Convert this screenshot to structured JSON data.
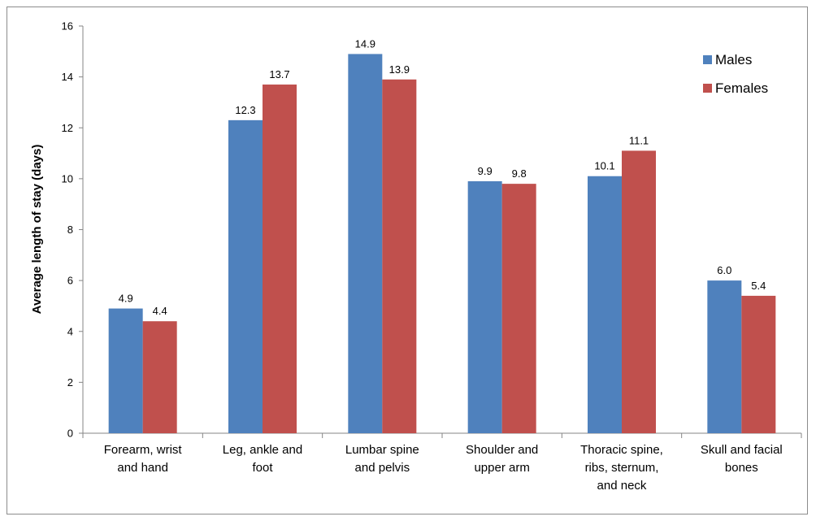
{
  "chart_data": {
    "type": "bar",
    "title": "",
    "xlabel": "",
    "ylabel": "Average length of stay (days)",
    "ylim": [
      0,
      16
    ],
    "yticks": [
      "0",
      "2",
      "4",
      "6",
      "8",
      "10",
      "12",
      "14",
      "16"
    ],
    "grid": false,
    "legend_position": "top-right",
    "categories": [
      [
        "Forearm, wrist",
        "and hand"
      ],
      [
        "Leg, ankle and",
        "foot"
      ],
      [
        "Lumbar spine",
        "and pelvis"
      ],
      [
        "Shoulder and",
        "upper arm"
      ],
      [
        "Thoracic spine,",
        "ribs, sternum,",
        "and neck"
      ],
      [
        "Skull and facial",
        "bones"
      ]
    ],
    "series": [
      {
        "name": "Males",
        "color": "#4f81bd",
        "values": [
          4.9,
          12.3,
          14.9,
          9.9,
          10.1,
          6.0
        ],
        "labels": [
          "4.9",
          "12.3",
          "14.9",
          "9.9",
          "10.1",
          "6.0"
        ]
      },
      {
        "name": "Females",
        "color": "#c0504d",
        "values": [
          4.4,
          13.7,
          13.9,
          9.8,
          11.1,
          5.4
        ],
        "labels": [
          "4.4",
          "13.7",
          "13.9",
          "9.8",
          "11.1",
          "5.4"
        ]
      }
    ]
  }
}
